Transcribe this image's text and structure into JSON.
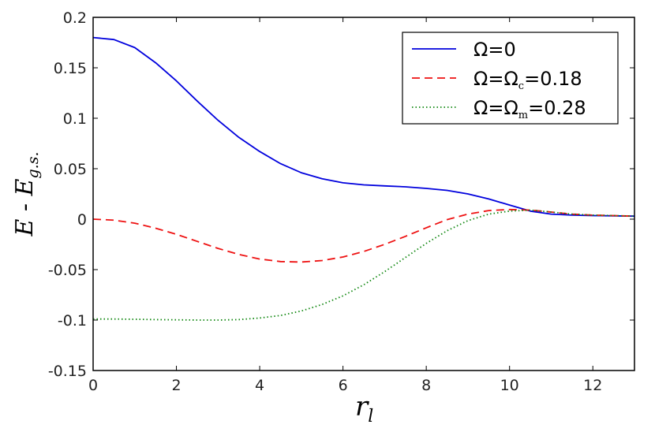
{
  "chart_data": {
    "type": "line",
    "xlabel": "r",
    "xlabel_sub": "l",
    "ylabel": "E - E",
    "ylabel_sub": "g.s.",
    "xlim": [
      0,
      13
    ],
    "ylim": [
      -0.15,
      0.2
    ],
    "x_ticks": [
      0,
      2,
      4,
      6,
      8,
      10,
      12
    ],
    "x_tick_labels": [
      "0",
      "2",
      "4",
      "6",
      "8",
      "10",
      "12"
    ],
    "y_ticks": [
      -0.15,
      -0.1,
      -0.05,
      0,
      0.05,
      0.1,
      0.15,
      0.2
    ],
    "y_tick_labels": [
      "-0.15",
      "-0.1",
      "-0.05",
      "0",
      "0.05",
      "0.1",
      "0.15",
      "0.2"
    ],
    "grid": false,
    "legend_position": "top-right",
    "series": [
      {
        "name": "Ω=0",
        "legend": {
          "pre": "Ω=0",
          "sub": "",
          "post": ""
        },
        "color": "#0000dd",
        "dash": "solid",
        "x": [
          0,
          0.5,
          1,
          1.5,
          2,
          2.5,
          3,
          3.5,
          4,
          4.5,
          5,
          5.5,
          6,
          6.5,
          7,
          7.5,
          8,
          8.5,
          9,
          9.5,
          10,
          10.5,
          11,
          11.5,
          12,
          12.5,
          13
        ],
        "y": [
          0.18,
          0.178,
          0.17,
          0.155,
          0.137,
          0.117,
          0.098,
          0.081,
          0.067,
          0.055,
          0.046,
          0.04,
          0.036,
          0.034,
          0.033,
          0.032,
          0.0305,
          0.0285,
          0.025,
          0.02,
          0.014,
          0.008,
          0.005,
          0.004,
          0.0035,
          0.0033,
          0.003
        ]
      },
      {
        "name": "Ω=Ωc=0.18",
        "legend": {
          "pre": "Ω=Ω",
          "sub": "c",
          "post": "=0.18"
        },
        "color": "#ee1111",
        "dash": "dashed",
        "x": [
          0,
          0.5,
          1,
          1.5,
          2,
          2.5,
          3,
          3.5,
          4,
          4.5,
          5,
          5.5,
          6,
          6.5,
          7,
          7.5,
          8,
          8.5,
          9,
          9.5,
          10,
          10.5,
          11,
          11.5,
          12,
          12.5,
          13
        ],
        "y": [
          0,
          -0.001,
          -0.004,
          -0.009,
          -0.015,
          -0.022,
          -0.029,
          -0.035,
          -0.0395,
          -0.042,
          -0.0425,
          -0.041,
          -0.0375,
          -0.032,
          -0.025,
          -0.017,
          -0.0085,
          -0.0005,
          0.005,
          0.0085,
          0.0095,
          0.009,
          0.007,
          0.005,
          0.004,
          0.0035,
          0.003
        ]
      },
      {
        "name": "Ω=Ωm=0.28",
        "legend": {
          "pre": "Ω=Ω",
          "sub": "m",
          "post": "=0.28"
        },
        "color": "#118811",
        "dash": "dotted",
        "x": [
          0,
          0.5,
          1,
          1.5,
          2,
          2.5,
          3,
          3.5,
          4,
          4.5,
          5,
          5.5,
          6,
          6.5,
          7,
          7.5,
          8,
          8.5,
          9,
          9.5,
          10,
          10.5,
          11,
          11.5,
          12,
          12.5,
          13
        ],
        "y": [
          -0.099,
          -0.099,
          -0.0992,
          -0.0995,
          -0.0998,
          -0.1,
          -0.1,
          -0.0995,
          -0.098,
          -0.0955,
          -0.091,
          -0.0845,
          -0.076,
          -0.065,
          -0.052,
          -0.038,
          -0.024,
          -0.0115,
          -0.0015,
          0.005,
          0.008,
          0.009,
          0.007,
          0.005,
          0.004,
          0.0035,
          0.003
        ]
      }
    ]
  }
}
